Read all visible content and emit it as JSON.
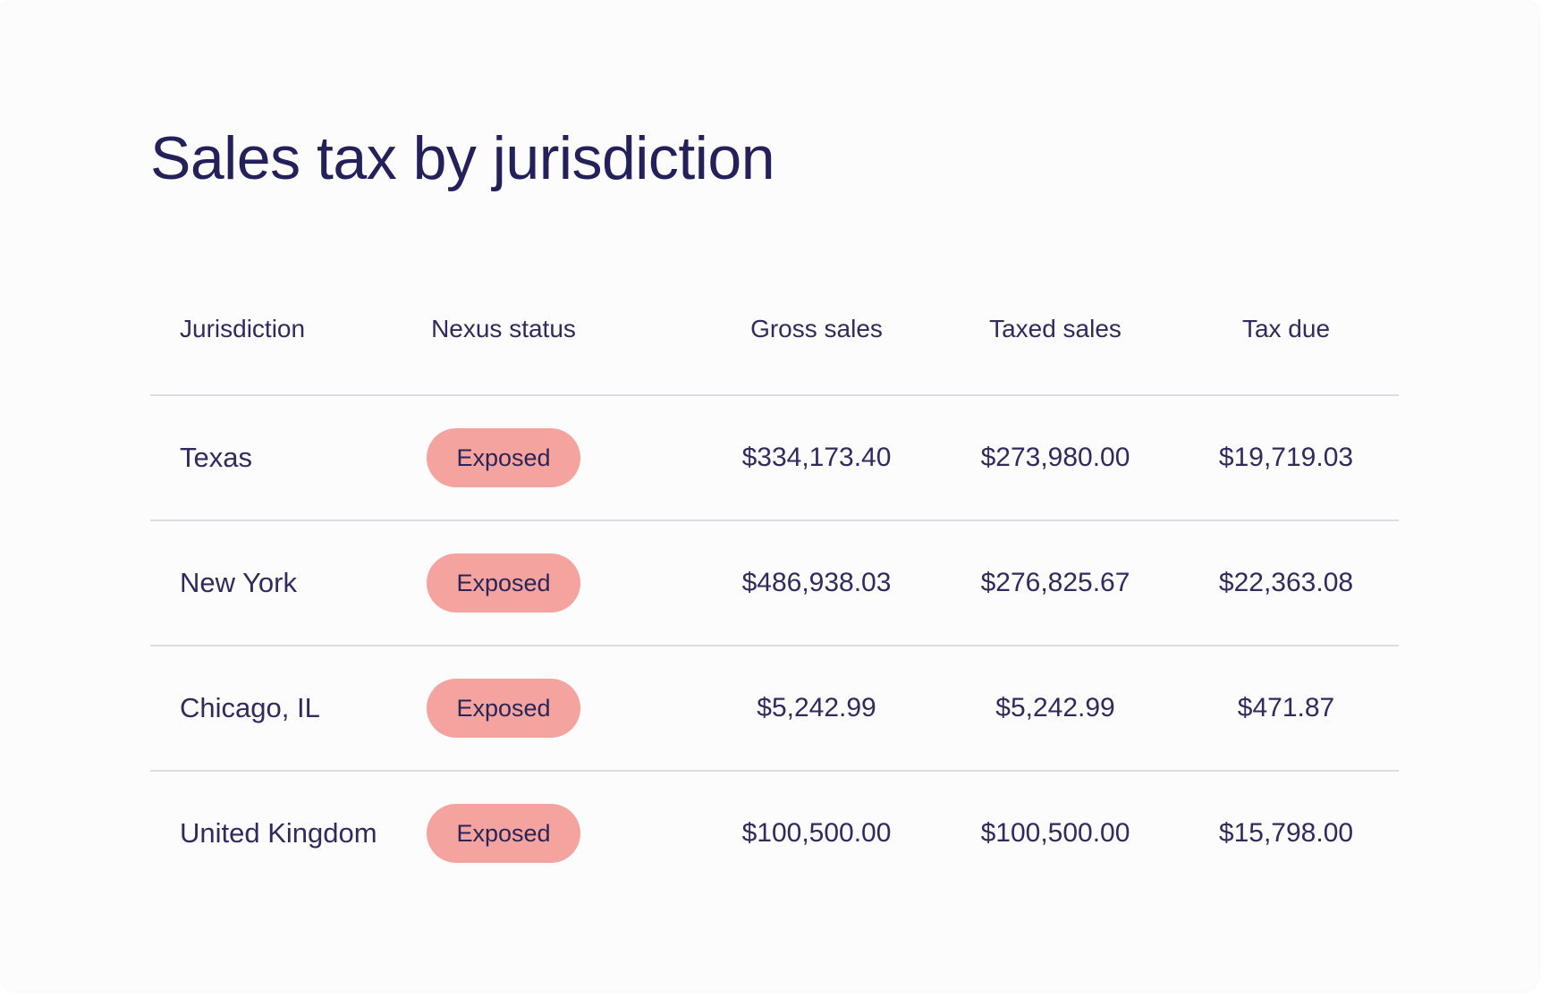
{
  "title": "Sales tax by jurisdiction",
  "colors": {
    "text": "#2b2557",
    "badge_exposed": "#f4a39e",
    "divider": "#dddbe6",
    "card_bg": "#fdfcfc"
  },
  "table": {
    "headers": {
      "jurisdiction": "Jurisdiction",
      "nexus_status": "Nexus status",
      "gross_sales": "Gross sales",
      "taxed_sales": "Taxed sales",
      "tax_due": "Tax due"
    },
    "rows": [
      {
        "jurisdiction": "Texas",
        "nexus_status": "Exposed",
        "gross_sales": "$334,173.40",
        "taxed_sales": "$273,980.00",
        "tax_due": "$19,719.03"
      },
      {
        "jurisdiction": "New York",
        "nexus_status": "Exposed",
        "gross_sales": "$486,938.03",
        "taxed_sales": "$276,825.67",
        "tax_due": "$22,363.08"
      },
      {
        "jurisdiction": "Chicago, IL",
        "nexus_status": "Exposed",
        "gross_sales": "$5,242.99",
        "taxed_sales": "$5,242.99",
        "tax_due": "$471.87"
      },
      {
        "jurisdiction": "United Kingdom",
        "nexus_status": "Exposed",
        "gross_sales": "$100,500.00",
        "taxed_sales": "$100,500.00",
        "tax_due": "$15,798.00"
      }
    ]
  }
}
